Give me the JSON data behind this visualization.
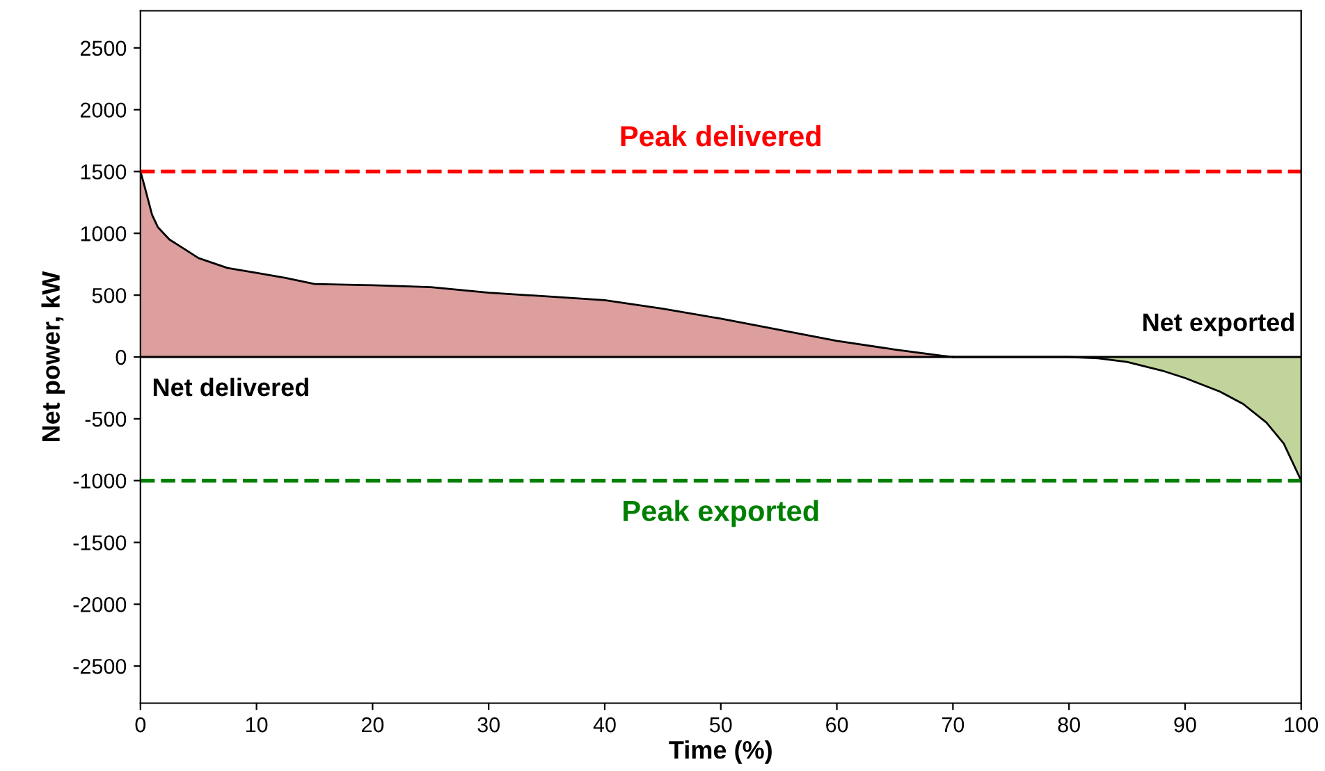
{
  "chart_data": {
    "type": "area",
    "xlabel": "Time (%)",
    "ylabel": "Net power, kW",
    "xlim": [
      0,
      100
    ],
    "ylim": [
      -2800,
      2800
    ],
    "xticks": [
      0,
      10,
      20,
      30,
      40,
      50,
      60,
      70,
      80,
      90,
      100
    ],
    "yticks": [
      -2500,
      -2000,
      -1500,
      -1000,
      -500,
      0,
      500,
      1000,
      1500,
      2000,
      2500
    ],
    "grid": false,
    "legend": false,
    "series": [
      {
        "color": "#c0504d",
        "x": [
          0,
          0.3,
          1,
          1.5,
          2.5,
          4,
          5,
          7.5,
          10,
          12.5,
          15,
          20,
          25,
          30,
          35,
          40,
          45,
          50,
          55,
          60,
          65,
          69,
          70
        ],
        "values": [
          1500,
          1400,
          1150,
          1050,
          950,
          860,
          800,
          720,
          680,
          640,
          590,
          580,
          565,
          520,
          490,
          460,
          390,
          310,
          220,
          130,
          60,
          10,
          0
        ]
      },
      {
        "color": "#8db04a",
        "x": [
          70,
          80,
          82.5,
          85,
          88,
          90,
          93,
          95,
          97,
          98.5,
          100
        ],
        "values": [
          0,
          0,
          -10,
          -40,
          -110,
          -170,
          -280,
          -380,
          -530,
          -700,
          -1000
        ]
      }
    ],
    "ref_lines": [
      {
        "axis": "y",
        "value": 1500,
        "label": "Peak delivered",
        "color": "#ff0000",
        "line_style": "dashed"
      },
      {
        "axis": "y",
        "value": -1000,
        "label": "Peak exported",
        "color": "#008000",
        "line_style": "dashed"
      }
    ],
    "annotations": [
      "Net delivered",
      "Net exported"
    ]
  }
}
